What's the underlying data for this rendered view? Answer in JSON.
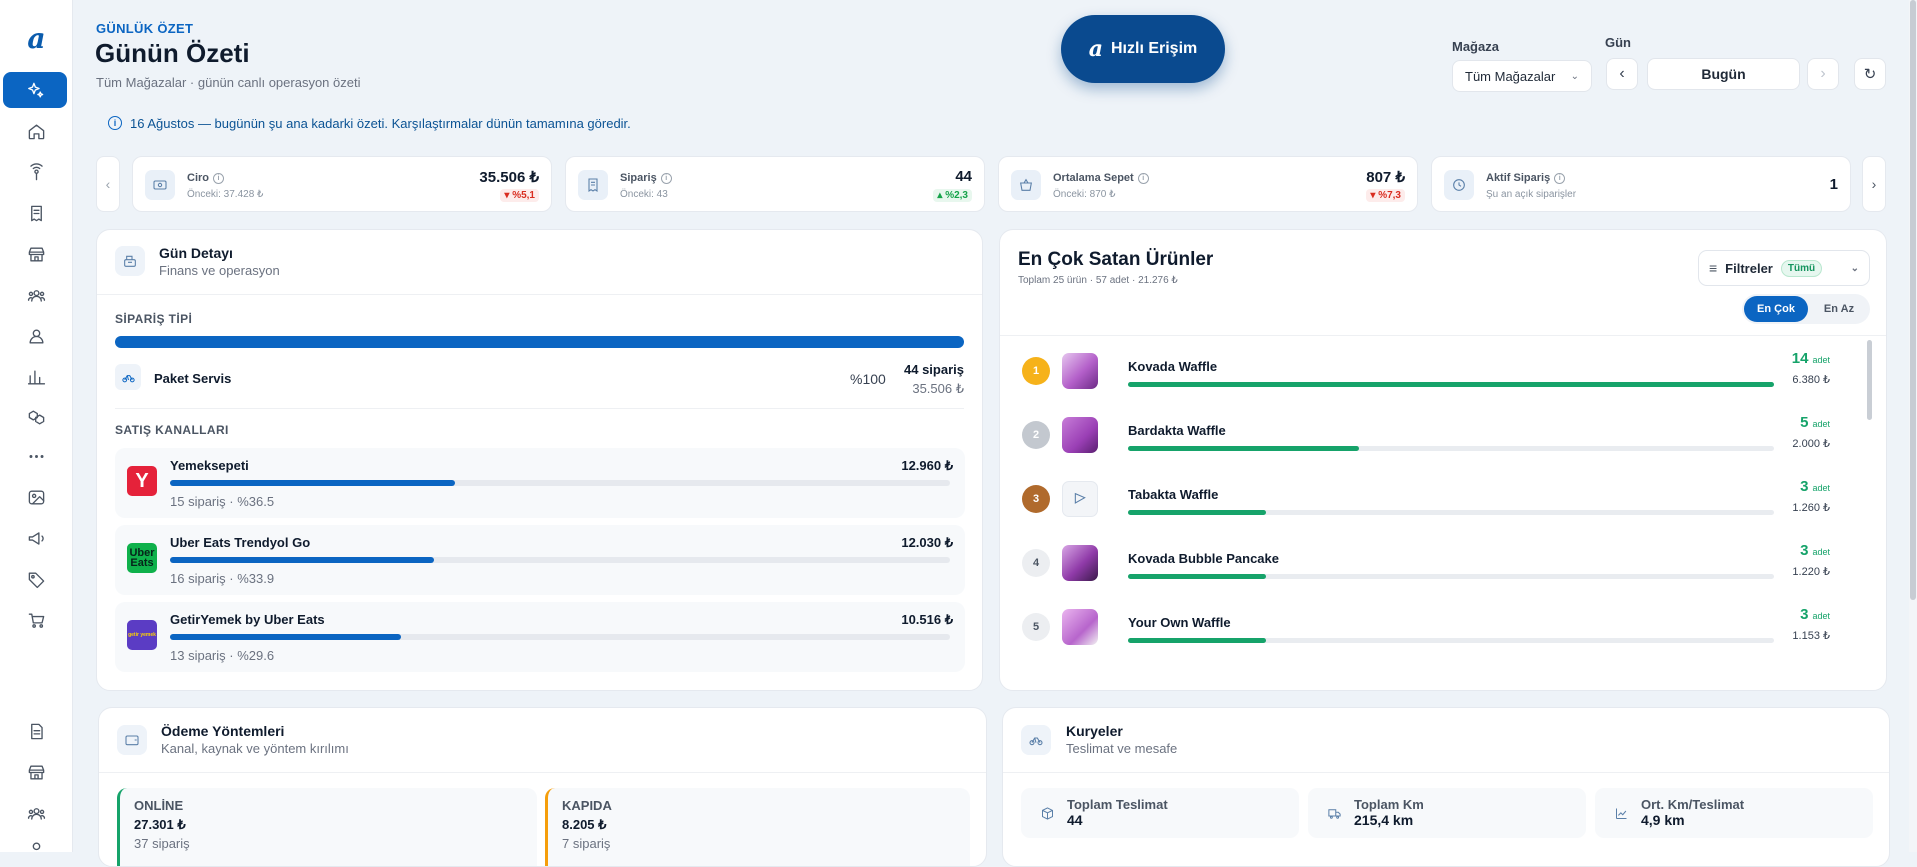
{
  "header": {
    "kicker": "GÜNLÜK ÖZET",
    "title": "Günün Özeti",
    "subtitle": "Tüm Mağazalar · günün canlı operasyon özeti",
    "quick_access": "Hızlı Erişim",
    "store_label": "Mağaza",
    "store_value": "Tüm Mağazalar",
    "day_label": "Gün",
    "day_value": "Bugün",
    "info": "16 Ağustos — bugünün şu ana kadarki özeti. Karşılaştırmalar dünün tamamına göredir."
  },
  "kpis": [
    {
      "title": "Ciro",
      "prev": "Önceki: 37.428 ₺",
      "value": "35.506 ₺",
      "delta": "▾ %5,1",
      "dir": "down"
    },
    {
      "title": "Sipariş",
      "prev": "Önceki: 43",
      "value": "44",
      "delta": "▴ %2,3",
      "dir": "up"
    },
    {
      "title": "Ortalama Sepet",
      "prev": "Önceki: 870 ₺",
      "value": "807 ₺",
      "delta": "▾ %7,3",
      "dir": "down"
    },
    {
      "title": "Aktif Sipariş",
      "prev": "Şu an açık siparişler",
      "value": "1",
      "delta": "",
      "dir": ""
    }
  ],
  "day_detail": {
    "title": "Gün Detayı",
    "subtitle": "Finans ve operasyon",
    "order_type_label": "SİPARİŞ TİPİ",
    "order_type_share": 1.0,
    "order_type": {
      "name": "Paket Servis",
      "pct": "%100",
      "orders": "44 sipariş",
      "amount": "35.506 ₺"
    },
    "channels_label": "SATIŞ KANALLARI",
    "channels": [
      {
        "name": "Yemeksepeti",
        "amount": "12.960 ₺",
        "detail": "15 sipariş · %36.5",
        "share": 0.365,
        "logo": "Y",
        "color": "#e5223a"
      },
      {
        "name": "Uber Eats Trendyol Go",
        "amount": "12.030 ₺",
        "detail": "16 sipariş · %33.9",
        "share": 0.339,
        "logo": "Uber Eats",
        "color": "#0fb14b"
      },
      {
        "name": "GetirYemek by Uber Eats",
        "amount": "10.516 ₺",
        "detail": "13 sipariş · %29.6",
        "share": 0.296,
        "logo": "getir yemek",
        "color": "#5b3cc4"
      }
    ]
  },
  "top_sellers": {
    "title": "En Çok Satan Ürünler",
    "subtitle": "Toplam 25 ürün · 57 adet · 21.276 ₺",
    "filter_label": "Filtreler",
    "filter_badge": "Tümü",
    "seg_most": "En Çok",
    "seg_least": "En Az",
    "unit": "adet",
    "products": [
      {
        "rank": "1",
        "name": "Kovada Waffle",
        "qty": "14",
        "price": "6.380 ₺",
        "share": 1.0
      },
      {
        "rank": "2",
        "name": "Bardakta Waffle",
        "qty": "5",
        "price": "2.000 ₺",
        "share": 0.357
      },
      {
        "rank": "3",
        "name": "Tabakta Waffle",
        "qty": "3",
        "price": "1.260 ₺",
        "share": 0.214
      },
      {
        "rank": "4",
        "name": "Kovada Bubble Pancake",
        "qty": "3",
        "price": "1.220 ₺",
        "share": 0.214
      },
      {
        "rank": "5",
        "name": "Your Own Waffle",
        "qty": "3",
        "price": "1.153 ₺",
        "share": 0.214
      }
    ]
  },
  "payments": {
    "title": "Ödeme Yöntemleri",
    "subtitle": "Kanal, kaynak ve yöntem kırılımı",
    "items": [
      {
        "label": "ONLİNE",
        "value": "27.301 ₺",
        "count": "37 sipariş",
        "color": "#16a36a"
      },
      {
        "label": "KAPIDA",
        "value": "8.205 ₺",
        "count": "7 sipariş",
        "color": "#f59e0b"
      }
    ]
  },
  "couriers": {
    "title": "Kuryeler",
    "subtitle": "Teslimat ve mesafe",
    "stats": [
      {
        "label": "Toplam Teslimat",
        "value": "44"
      },
      {
        "label": "Toplam Km",
        "value": "215,4 km"
      },
      {
        "label": "Ort. Km/Teslimat",
        "value": "4,9 km"
      }
    ]
  }
}
